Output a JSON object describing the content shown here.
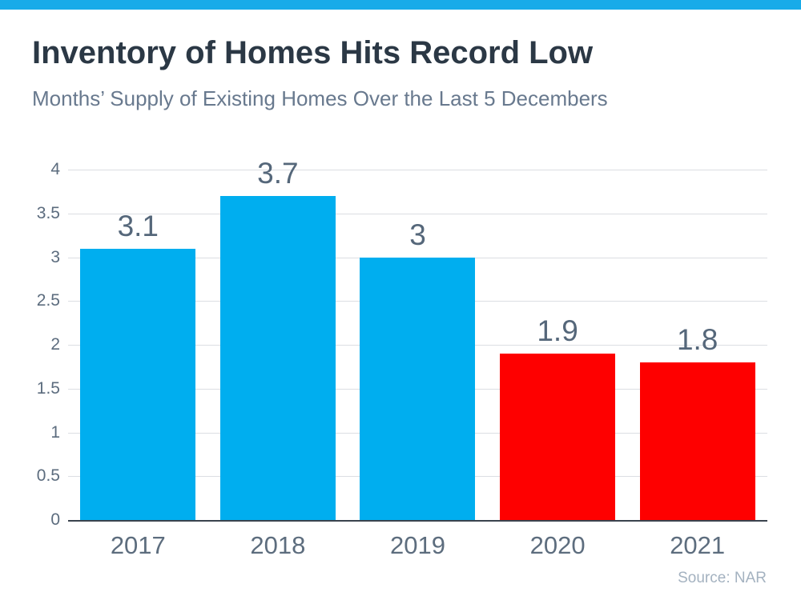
{
  "page": {
    "top_strip_color": "#18abe9"
  },
  "header": {
    "title": "Inventory of Homes Hits Record Low",
    "subtitle": "Months’ Supply of Existing Homes Over the Last 5 Decembers"
  },
  "chart_data": {
    "type": "bar",
    "title": "Inventory of Homes Hits Record Low",
    "subtitle": "Months’ Supply of Existing Homes Over the Last 5 Decembers",
    "categories": [
      "2017",
      "2018",
      "2019",
      "2020",
      "2021"
    ],
    "values": [
      3.1,
      3.7,
      3,
      1.9,
      1.8
    ],
    "value_labels": [
      "3.1",
      "3.7",
      "3",
      "1.9",
      "1.8"
    ],
    "bar_colors": [
      "#00aeef",
      "#00aeef",
      "#00aeef",
      "#fe0000",
      "#fe0000"
    ],
    "ylim": [
      0,
      4
    ],
    "yticks": [
      0,
      0.5,
      1,
      1.5,
      2,
      2.5,
      3,
      3.5,
      4
    ],
    "ytick_labels": [
      "0",
      "0.5",
      "1",
      "1.5",
      "2",
      "2.5",
      "3",
      "3.5",
      "4"
    ],
    "grid": true,
    "gridline_color": "#dbdee3",
    "legend": false,
    "xlabel": "",
    "ylabel": "",
    "source": "Source: NAR"
  },
  "footer": {
    "source": "Source: NAR"
  }
}
